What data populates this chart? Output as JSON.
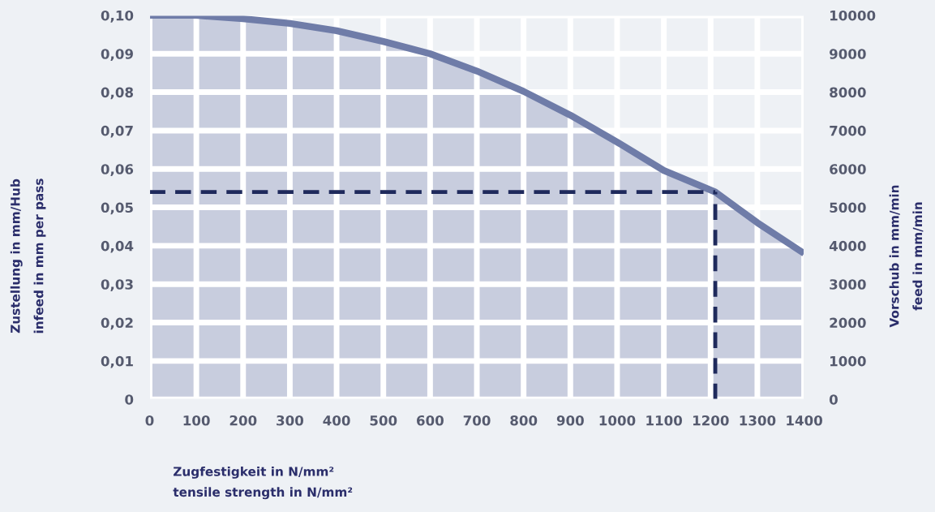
{
  "chart_data": {
    "type": "area",
    "xlabel": "Zugfestigkeit in N/mm²\ntensile strength in N/mm²",
    "ylabel": "Zustellung in mm/Hub\ninfeed in mm per pass",
    "y2label": "Vorschub in mm/min\nfeed in mm/min",
    "x": [
      0,
      100,
      200,
      300,
      400,
      500,
      600,
      700,
      800,
      900,
      1000,
      1100,
      1210,
      1300,
      1400
    ],
    "series": [
      {
        "color": "#6f7ca8",
        "values": [
          0.1,
          0.1,
          0.0991,
          0.0979,
          0.096,
          0.0932,
          0.09,
          0.0855,
          0.0802,
          0.074,
          0.067,
          0.0596,
          0.054,
          0.046,
          0.038
        ]
      }
    ],
    "xlim": [
      0,
      1400
    ],
    "xticks": [
      0,
      100,
      200,
      300,
      400,
      500,
      600,
      700,
      800,
      900,
      1000,
      1100,
      1200,
      1300,
      1400
    ],
    "ylim": [
      0,
      0.1
    ],
    "yticks": [
      {
        "value": 0,
        "label": "0"
      },
      {
        "value": 0.01,
        "label": "0,01"
      },
      {
        "value": 0.02,
        "label": "0,02"
      },
      {
        "value": 0.03,
        "label": "0,03"
      },
      {
        "value": 0.04,
        "label": "0,04"
      },
      {
        "value": 0.05,
        "label": "0,05"
      },
      {
        "value": 0.06,
        "label": "0,06"
      },
      {
        "value": 0.07,
        "label": "0,07"
      },
      {
        "value": 0.08,
        "label": "0,08"
      },
      {
        "value": 0.09,
        "label": "0,09"
      },
      {
        "value": 0.1,
        "label": "0,10"
      }
    ],
    "y2lim": [
      0,
      10000
    ],
    "y2ticks": [
      0,
      1000,
      2000,
      3000,
      4000,
      5000,
      6000,
      7000,
      8000,
      9000,
      10000
    ],
    "ref_lines": [
      {
        "axis": "y",
        "value": 0.054,
        "color": "#1f2a5c",
        "line_style": "dashed"
      },
      {
        "axis": "x",
        "value": 1210,
        "color": "#1f2a5c",
        "line_style": "dashed"
      }
    ],
    "grid": true
  }
}
